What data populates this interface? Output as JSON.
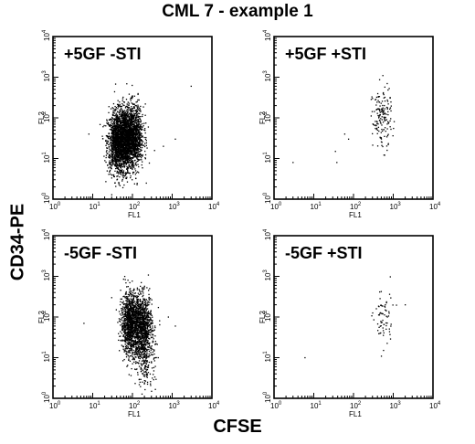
{
  "figure": {
    "title": "CML 7 - example 1",
    "y_label": "CD34-PE",
    "x_label": "CFSE"
  },
  "chart_data": [
    {
      "type": "scatter",
      "title": "+5GF -STI",
      "xlabel": "FL1",
      "ylabel": "FL2",
      "xscale": "log",
      "yscale": "log",
      "xlim": [
        1,
        10000
      ],
      "ylim": [
        1,
        10000
      ],
      "x_ticks": [
        "10",
        "10",
        "10",
        "10",
        "10"
      ],
      "x_tick_exponents": [
        "0",
        "1",
        "2",
        "3",
        "4"
      ],
      "y_ticks": [
        "10",
        "10",
        "10",
        "10",
        "10"
      ],
      "y_tick_exponents": [
        "0",
        "1",
        "2",
        "3",
        "4"
      ],
      "clusters": [
        {
          "center": [
            40,
            25
          ],
          "count": 1000
        },
        {
          "center": [
            65,
            30
          ],
          "count": 1400
        },
        {
          "center": [
            110,
            35
          ],
          "count": 1000
        }
      ],
      "outliers": [
        [
          3000,
          600
        ],
        [
          1200,
          30
        ],
        [
          600,
          20
        ],
        [
          8,
          40
        ]
      ]
    },
    {
      "type": "scatter",
      "title": "+5GF +STI",
      "xlabel": "FL1",
      "ylabel": "FL2",
      "xscale": "log",
      "yscale": "log",
      "xlim": [
        1,
        10000
      ],
      "ylim": [
        1,
        10000
      ],
      "x_ticks": [
        "10",
        "10",
        "10",
        "10",
        "10"
      ],
      "x_tick_exponents": [
        "0",
        "1",
        "2",
        "3",
        "4"
      ],
      "y_ticks": [
        "10",
        "10",
        "10",
        "10",
        "10"
      ],
      "y_tick_exponents": [
        "0",
        "1",
        "2",
        "3",
        "4"
      ],
      "clusters": [
        {
          "center": [
            520,
            100
          ],
          "count": 160
        }
      ],
      "outliers": [
        [
          60,
          40
        ],
        [
          75,
          30
        ],
        [
          35,
          15
        ],
        [
          38,
          8
        ],
        [
          3,
          8
        ],
        [
          300,
          300
        ]
      ]
    },
    {
      "type": "scatter",
      "title": "-5GF -STI",
      "xlabel": "FL1",
      "ylabel": "FL2",
      "xscale": "log",
      "yscale": "log",
      "xlim": [
        1,
        10000
      ],
      "ylim": [
        1,
        10000
      ],
      "x_ticks": [
        "10",
        "10",
        "10",
        "10",
        "10"
      ],
      "x_tick_exponents": [
        "0",
        "1",
        "2",
        "3",
        "4"
      ],
      "y_ticks": [
        "10",
        "10",
        "10",
        "10",
        "10"
      ],
      "y_tick_exponents": [
        "0",
        "1",
        "2",
        "3",
        "4"
      ],
      "clusters": [
        {
          "center": [
            90,
            70
          ],
          "count": 1100
        },
        {
          "center": [
            180,
            60
          ],
          "count": 900
        },
        {
          "center": [
            220,
            8
          ],
          "count": 200
        }
      ],
      "outliers": [
        [
          6,
          70
        ],
        [
          1200,
          60
        ],
        [
          800,
          100
        ],
        [
          30,
          300
        ]
      ]
    },
    {
      "type": "scatter",
      "title": "-5GF +STI",
      "xlabel": "FL1",
      "ylabel": "FL2",
      "xscale": "log",
      "yscale": "log",
      "xlim": [
        1,
        10000
      ],
      "ylim": [
        1,
        10000
      ],
      "x_ticks": [
        "10",
        "10",
        "10",
        "10",
        "10"
      ],
      "x_tick_exponents": [
        "0",
        "1",
        "2",
        "3",
        "4"
      ],
      "y_ticks": [
        "10",
        "10",
        "10",
        "10",
        "10"
      ],
      "y_tick_exponents": [
        "0",
        "1",
        "2",
        "3",
        "4"
      ],
      "clusters": [
        {
          "center": [
            560,
            90
          ],
          "count": 70
        }
      ],
      "outliers": [
        [
          6,
          10
        ],
        [
          2000,
          200
        ]
      ]
    }
  ]
}
